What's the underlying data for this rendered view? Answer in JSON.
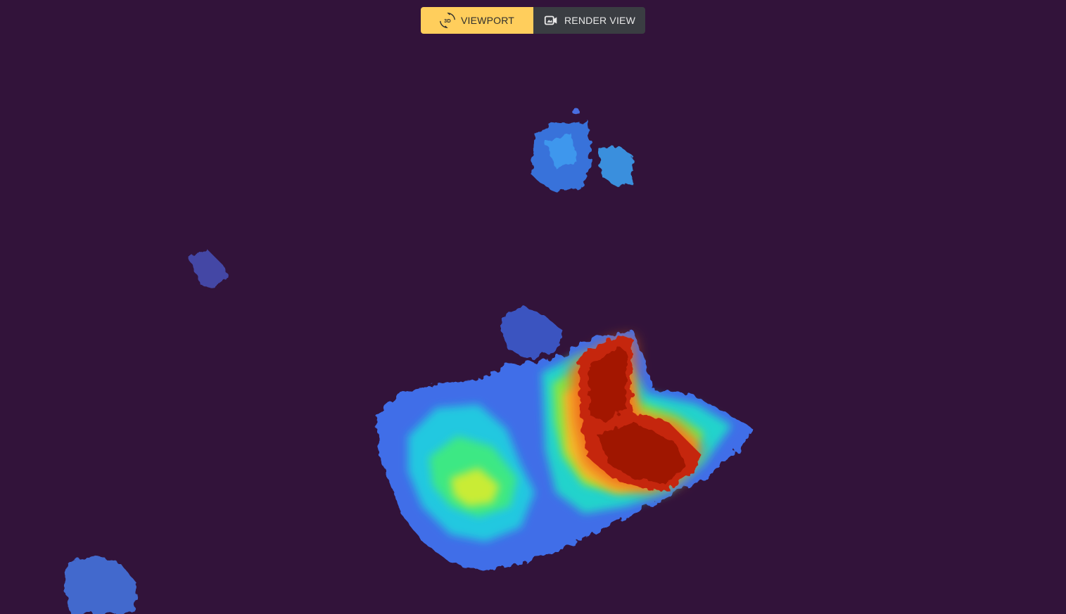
{
  "toolbar": {
    "viewport": {
      "label": "VIEWPORT",
      "icon": "3d-rotation-icon",
      "active": true,
      "color": "#ffce5c"
    },
    "render_view": {
      "label": "RENDER VIEW",
      "icon": "video-camera-icon",
      "active": false,
      "color": "#3a3d42"
    }
  },
  "viewport": {
    "background": "#32133a",
    "colormap": "turbo"
  }
}
